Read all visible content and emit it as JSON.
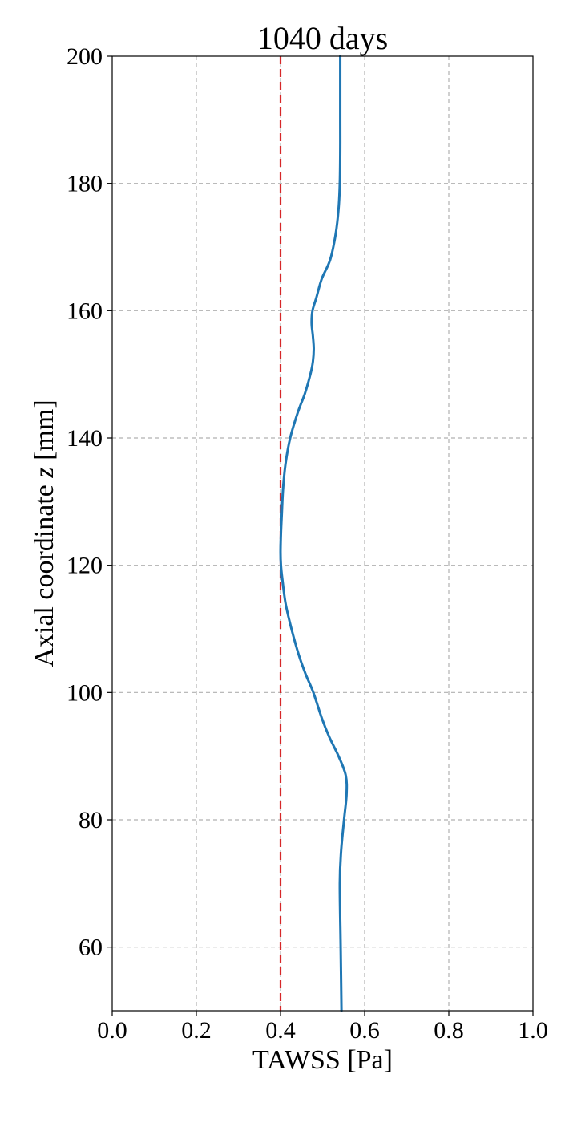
{
  "chart_data": {
    "type": "line",
    "title": "1040 days",
    "xlabel": "TAWSS [Pa]",
    "ylabel": "Axial coordinate z [mm]",
    "ylabel_prefix": "Axial coordinate ",
    "ylabel_var": "z",
    "ylabel_suffix": " [mm]",
    "xlim": [
      0.0,
      1.0
    ],
    "ylim": [
      50,
      200
    ],
    "x_ticks": [
      "0.0",
      "0.2",
      "0.4",
      "0.6",
      "0.8",
      "1.0"
    ],
    "y_ticks": [
      "60",
      "80",
      "100",
      "120",
      "140",
      "160",
      "180",
      "200"
    ],
    "grid": true,
    "series": [
      {
        "color": "#1f77b4",
        "points": [
          [
            0.545,
            50
          ],
          [
            0.543,
            60
          ],
          [
            0.541,
            70
          ],
          [
            0.544,
            75
          ],
          [
            0.551,
            80
          ],
          [
            0.557,
            84
          ],
          [
            0.555,
            87
          ],
          [
            0.538,
            90
          ],
          [
            0.516,
            93
          ],
          [
            0.498,
            96
          ],
          [
            0.478,
            100
          ],
          [
            0.459,
            103
          ],
          [
            0.443,
            106
          ],
          [
            0.426,
            110
          ],
          [
            0.412,
            114
          ],
          [
            0.404,
            118
          ],
          [
            0.401,
            120
          ],
          [
            0.4,
            122
          ],
          [
            0.401,
            125
          ],
          [
            0.403,
            128
          ],
          [
            0.406,
            132
          ],
          [
            0.412,
            136
          ],
          [
            0.423,
            140
          ],
          [
            0.441,
            144
          ],
          [
            0.458,
            147
          ],
          [
            0.471,
            150
          ],
          [
            0.477,
            152
          ],
          [
            0.479,
            154
          ],
          [
            0.477,
            156
          ],
          [
            0.474,
            158
          ],
          [
            0.476,
            160
          ],
          [
            0.485,
            162
          ],
          [
            0.498,
            165
          ],
          [
            0.518,
            168
          ],
          [
            0.531,
            172
          ],
          [
            0.538,
            176
          ],
          [
            0.541,
            180
          ],
          [
            0.542,
            185
          ],
          [
            0.542,
            190
          ],
          [
            0.542,
            200
          ]
        ]
      }
    ],
    "reference_line": {
      "x": 0.4,
      "color": "#d62728",
      "style": "dashed"
    }
  }
}
